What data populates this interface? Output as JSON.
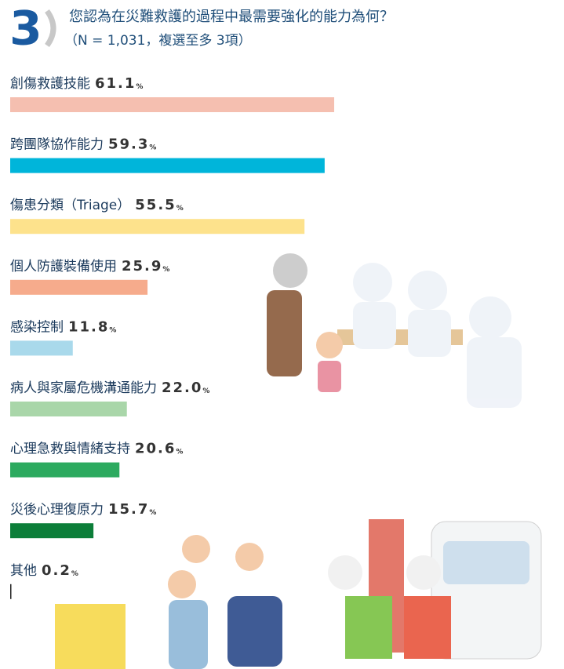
{
  "chart_data": {
    "type": "bar",
    "orientation": "horizontal",
    "number": "3",
    "title": "您認為在災難救護的過程中最需要強化的能力為何？",
    "subtitle": "（N = 1,031，複選至多 3項）",
    "categories": [
      "創傷救護技能",
      "跨團隊協作能力",
      "傷患分類（Triage）",
      "個人防護裝備使用",
      "感染控制",
      "病人與家屬危機溝通能力",
      "心理急救與情緒支持",
      "災後心理復原力",
      "其他"
    ],
    "values": [
      61.1,
      59.3,
      55.5,
      25.9,
      11.8,
      22.0,
      20.6,
      15.7,
      0.2
    ],
    "value_labels": [
      "61.1",
      "59.3",
      "55.5",
      "25.9",
      "11.8",
      "22.0",
      "20.6",
      "15.7",
      "0.2"
    ],
    "unit": "%",
    "colors": [
      "#f5bfb0",
      "#00b5da",
      "#fde28c",
      "#f6ab8c",
      "#a9d9eb",
      "#a9d6a9",
      "#2caa5f",
      "#0c7e39",
      "#222222"
    ],
    "xlim": [
      0,
      100
    ]
  }
}
